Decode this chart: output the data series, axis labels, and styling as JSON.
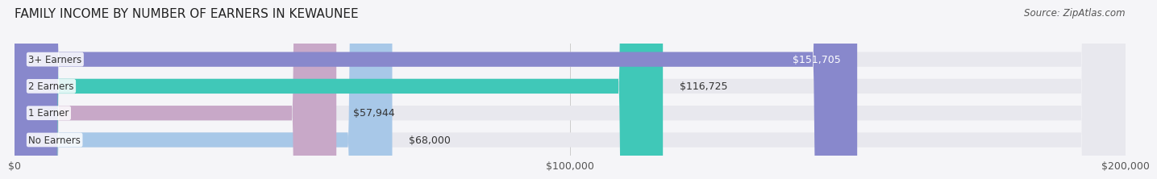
{
  "title": "FAMILY INCOME BY NUMBER OF EARNERS IN KEWAUNEE",
  "source": "Source: ZipAtlas.com",
  "categories": [
    "No Earners",
    "1 Earner",
    "2 Earners",
    "3+ Earners"
  ],
  "values": [
    68000,
    57944,
    116725,
    151705
  ],
  "labels": [
    "$68,000",
    "$57,944",
    "$116,725",
    "$151,705"
  ],
  "bar_colors": [
    "#a8c8e8",
    "#c8a8c8",
    "#40c8b8",
    "#8888cc"
  ],
  "bar_bg_color": "#e8e8ee",
  "xlim": [
    0,
    200000
  ],
  "xticks": [
    0,
    100000,
    200000
  ],
  "xtick_labels": [
    "$0",
    "$100,000",
    "$200,000"
  ],
  "fig_bg_color": "#f5f5f8",
  "title_fontsize": 11,
  "source_fontsize": 8.5,
  "label_fontsize": 9,
  "category_fontsize": 8.5,
  "bar_height": 0.55,
  "bar_label_inside_threshold": 130000
}
